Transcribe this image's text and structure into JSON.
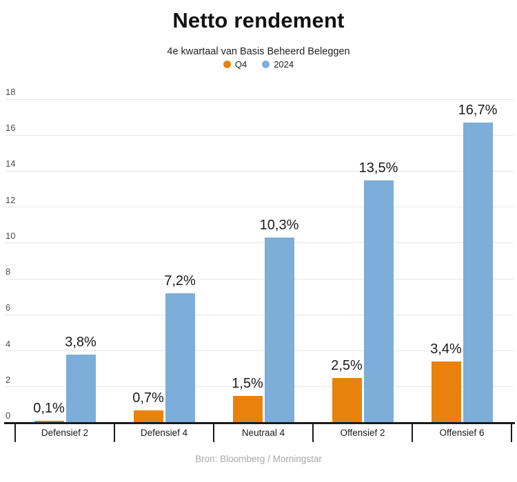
{
  "header": {
    "title": "Netto rendement",
    "subtitle": "4e kwartaal van Basis Beheerd Beleggen"
  },
  "legend": [
    {
      "label": "Q4",
      "color": "#e8820d"
    },
    {
      "label": "2024",
      "color": "#7dadd9"
    }
  ],
  "source": "Bron: Bloomberg / Morningstar",
  "chart_data": {
    "type": "bar",
    "title": "Netto rendement",
    "subtitle": "4e kwartaal van Basis Beheerd Beleggen",
    "categories": [
      "Defensief 2",
      "Defensief 4",
      "Neutraal 4",
      "Offensief 2",
      "Offensief 6"
    ],
    "series": [
      {
        "name": "Q4",
        "color": "#e8820d",
        "values": [
          0.1,
          0.7,
          1.5,
          2.5,
          3.4
        ],
        "display": [
          "0,1%",
          "0,7%",
          "1,5%",
          "2,5%",
          "3,4%"
        ]
      },
      {
        "name": "2024",
        "color": "#7dadd9",
        "values": [
          3.8,
          7.2,
          10.3,
          13.5,
          16.7
        ],
        "display": [
          "3,8%",
          "7,2%",
          "10,3%",
          "13,5%",
          "16,7%"
        ]
      }
    ],
    "xlabel": "",
    "ylabel": "",
    "ylim": [
      0,
      18
    ],
    "yticks": [
      0,
      2,
      4,
      6,
      8,
      10,
      12,
      14,
      16,
      18
    ],
    "grid": true,
    "legend_position": "top",
    "value_labels": true,
    "source": "Bron: Bloomberg / Morningstar"
  }
}
